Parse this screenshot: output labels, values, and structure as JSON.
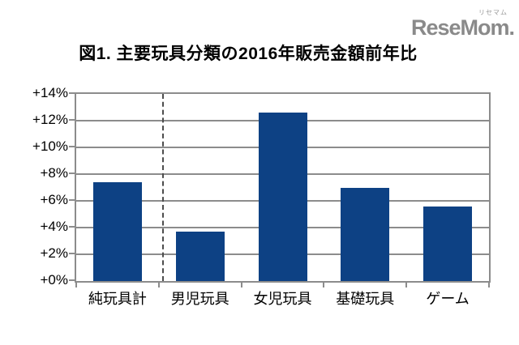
{
  "logo": {
    "text": "ReseMom.",
    "ruby": "リセマム",
    "color": "#8a8a8a"
  },
  "title": "図1. 主要玩具分類の2016年販売金額前年比",
  "chart_data": {
    "type": "bar",
    "categories": [
      "純玩具計",
      "男児玩具",
      "女児玩具",
      "基礎玩具",
      "ゲーム"
    ],
    "values": [
      7.4,
      3.7,
      12.6,
      7.0,
      5.6
    ],
    "title": "図1. 主要玩具分類の2016年販売金額前年比",
    "xlabel": "",
    "ylabel": "",
    "ylim": [
      0,
      14
    ],
    "ytick_step": 2,
    "ytick_labels": [
      "+0%",
      "+2%",
      "+4%",
      "+6%",
      "+8%",
      "+10%",
      "+12%",
      "+14%"
    ],
    "grid": true,
    "legend": "none",
    "bar_color": "#0d4184",
    "grid_color": "#8c8c8c",
    "separator_after_category_index": 0,
    "separator_style": "dashed"
  }
}
